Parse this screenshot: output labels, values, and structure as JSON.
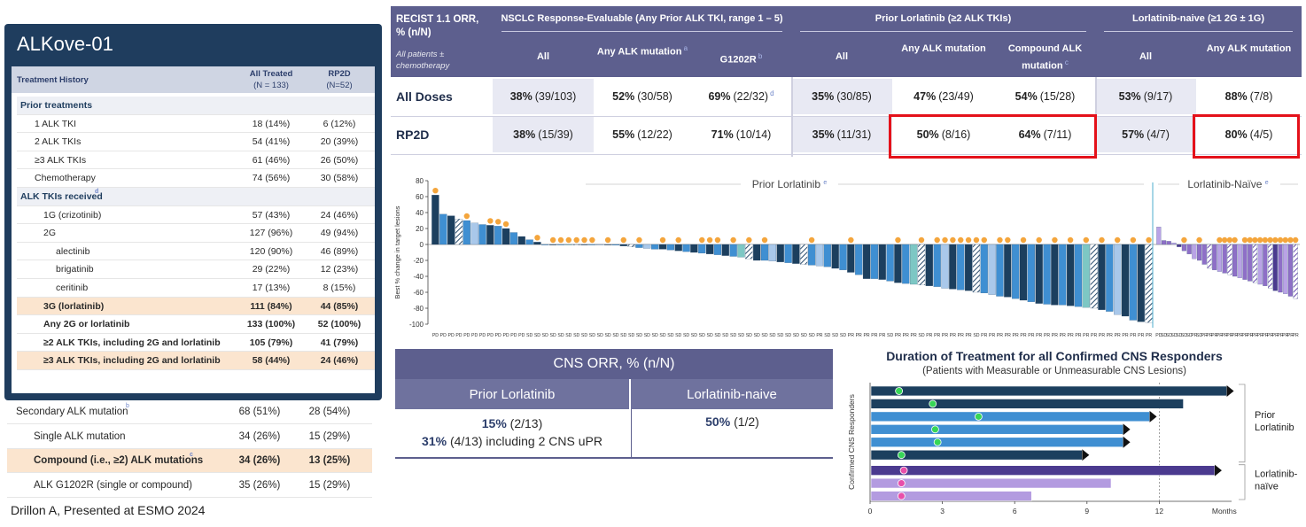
{
  "left_panel": {
    "title": "ALKove-01",
    "header": {
      "label": "Treatment History",
      "col1": "All Treated",
      "col1_n": "(N = 133)",
      "col2": "RP2D",
      "col2_n": "(N=52)"
    },
    "rows": [
      {
        "label": "Prior treatments",
        "v1": "",
        "v2": "",
        "kind": "sect",
        "indent": 0
      },
      {
        "label": "1 ALK TKI",
        "v1": "18 (14%)",
        "v2": "6 (12%)",
        "kind": "",
        "indent": 1
      },
      {
        "label": "2 ALK TKIs",
        "v1": "54 (41%)",
        "v2": "20 (39%)",
        "kind": "",
        "indent": 1
      },
      {
        "label": "≥3 ALK TKIs",
        "v1": "61 (46%)",
        "v2": "26 (50%)",
        "kind": "",
        "indent": 1
      },
      {
        "label": "Chemotherapy",
        "v1": "74 (56%)",
        "v2": "30 (58%)",
        "kind": "",
        "indent": 1
      },
      {
        "label": "ALK TKIs received",
        "sup": "d",
        "v1": "",
        "v2": "",
        "kind": "sect",
        "indent": 0
      },
      {
        "label": "1G (crizotinib)",
        "v1": "57 (43%)",
        "v2": "24 (46%)",
        "kind": "",
        "indent": 2
      },
      {
        "label": "2G",
        "v1": "127 (96%)",
        "v2": "49 (94%)",
        "kind": "",
        "indent": 2
      },
      {
        "label": "alectinib",
        "v1": "120 (90%)",
        "v2": "46 (89%)",
        "kind": "",
        "indent": 3
      },
      {
        "label": "brigatinib",
        "v1": "29 (22%)",
        "v2": "12 (23%)",
        "kind": "",
        "indent": 3
      },
      {
        "label": "ceritinib",
        "v1": "17 (13%)",
        "v2": "8 (15%)",
        "kind": "",
        "indent": 3
      },
      {
        "label": "3G (lorlatinib)",
        "v1": "111 (84%)",
        "v2": "44 (85%)",
        "kind": "hlb",
        "indent": 2
      },
      {
        "label": "Any 2G or lorlatinib",
        "v1": "133 (100%)",
        "v2": "52 (100%)",
        "kind": "b",
        "indent": 2
      },
      {
        "label": "≥2 ALK TKIs, including 2G and lorlatinib",
        "v1": "105 (79%)",
        "v2": "41 (79%)",
        "kind": "b",
        "indent": 2
      },
      {
        "label": "≥3 ALK TKIs, including 2G and lorlatinib",
        "v1": "58 (44%)",
        "v2": "24 (46%)",
        "kind": "hlb",
        "indent": 2
      }
    ],
    "below_rows": [
      {
        "label": "Secondary ALK mutation",
        "sup": "b",
        "v1": "68 (51%)",
        "v2": "28 (54%)",
        "kind": "sect",
        "indent": 0
      },
      {
        "label": "Single ALK mutation",
        "v1": "34 (26%)",
        "v2": "15 (29%)",
        "kind": "",
        "indent": 1
      },
      {
        "label": "Compound (i.e., ≥2) ALK mutations",
        "sup": "c",
        "v1": "34 (26%)",
        "v2": "13 (25%)",
        "kind": "hlb",
        "indent": 1
      },
      {
        "label": "ALK G1202R (single or compound)",
        "v1": "35 (26%)",
        "v2": "15 (29%)",
        "kind": "",
        "indent": 1
      }
    ]
  },
  "citation": "Drillon A, Presented at ESMO 2024",
  "orr_table": {
    "corner_title": "RECIST 1.1 ORR, % (n/N)",
    "corner_note": "All patients ± chemotherapy",
    "groups": [
      {
        "label": "NSCLC Response-Evaluable (Any Prior ALK TKI, range 1 – 5)"
      },
      {
        "label": "Prior Lorlatinib (≥2 ALK TKIs)"
      },
      {
        "label": "Lorlatinib-naive (≥1 2G ± 1G)"
      }
    ],
    "columns": [
      {
        "label": "All",
        "sup": ""
      },
      {
        "label": "Any ALK mutation",
        "sup": "a"
      },
      {
        "label": "G1202R",
        "sup": "b"
      },
      {
        "label": "All",
        "sup": ""
      },
      {
        "label": "Any ALK mutation",
        "sup": ""
      },
      {
        "label": "Compound ALK mutation",
        "sup": "c"
      },
      {
        "label": "All",
        "sup": ""
      },
      {
        "label": "Any ALK mutation",
        "sup": ""
      }
    ],
    "rows": [
      {
        "label": "All Doses",
        "cells": [
          [
            "38%",
            "(39/103)",
            ""
          ],
          [
            "52%",
            "(30/58)",
            ""
          ],
          [
            "69%",
            "(22/32)",
            "d"
          ],
          [
            "35%",
            "(30/85)",
            ""
          ],
          [
            "47%",
            "(23/49)",
            ""
          ],
          [
            "54%",
            "(15/28)",
            ""
          ],
          [
            "53%",
            "(9/17)",
            ""
          ],
          [
            "88%",
            "(7/8)",
            ""
          ]
        ]
      },
      {
        "label": "RP2D",
        "cells": [
          [
            "38%",
            "(15/39)",
            ""
          ],
          [
            "55%",
            "(12/22)",
            ""
          ],
          [
            "71%",
            "(10/14)",
            ""
          ],
          [
            "35%",
            "(11/31)",
            ""
          ],
          [
            "50%",
            "(8/16)",
            ""
          ],
          [
            "64%",
            "(7/11)",
            ""
          ],
          [
            "57%",
            "(4/7)",
            ""
          ],
          [
            "80%",
            "(4/5)",
            ""
          ]
        ]
      }
    ]
  },
  "chart_data": [
    {
      "type": "bar",
      "ylabel": "Best % change in target lesions",
      "ylim": [
        -100,
        80
      ],
      "yticks": [
        -100,
        -80,
        -60,
        -40,
        -20,
        0,
        20,
        40,
        60,
        80
      ],
      "group_labels": [
        {
          "label": "Prior Lorlatinib",
          "sup": "e"
        },
        {
          "label": "Lorlatinib-Naïve",
          "sup": "e"
        }
      ],
      "groups": [
        {
          "values": [
            62,
            38,
            36,
            32,
            30,
            27,
            25,
            24,
            23,
            20,
            15,
            10,
            6,
            3,
            0,
            0,
            0,
            0,
            0,
            0,
            0,
            0,
            0,
            -1,
            -2,
            -3,
            -4,
            -5,
            -6,
            -6,
            -7,
            -8,
            -9,
            -10,
            -11,
            -12,
            -13,
            -14,
            -15,
            -16,
            -18,
            -20,
            -20,
            -21,
            -22,
            -23,
            -24,
            -25,
            -26,
            -27,
            -28,
            -30,
            -32,
            -35,
            -38,
            -43,
            -43,
            -44,
            -46,
            -48,
            -49,
            -50,
            -51,
            -52,
            -53,
            -55,
            -56,
            -57,
            -58,
            -60,
            -61,
            -63,
            -65,
            -66,
            -68,
            -70,
            -72,
            -74,
            -75,
            -76,
            -76,
            -77,
            -78,
            -79,
            -80,
            -82,
            -84,
            -88,
            -90,
            -95,
            -97,
            -98
          ],
          "responses": [
            "PD",
            "PD",
            "PD",
            "PD",
            "PD",
            "PD",
            "PD",
            "PD",
            "PD",
            "PD",
            "PD",
            "PD",
            "SD",
            "SD",
            "SD",
            "SD",
            "SD",
            "SD",
            "SD",
            "SD",
            "SD",
            "SD",
            "SD",
            "SD",
            "SD",
            "SD",
            "SD",
            "SD",
            "SD",
            "SD",
            "SD",
            "SD",
            "SD",
            "SD",
            "SD",
            "SD",
            "SD",
            "SD",
            "SD",
            "SD",
            "SD",
            "SD",
            "SD",
            "SD",
            "SD",
            "SD",
            "SD",
            "SD",
            "SD",
            "PR",
            "SD",
            "SD",
            "SD",
            "PR",
            "PR",
            "PR",
            "PR",
            "PR",
            "SD",
            "PR",
            "PR",
            "PR",
            "SD",
            "PR",
            "PR",
            "PR",
            "PR",
            "PR",
            "PR",
            "SD",
            "PR",
            "PR",
            "PR",
            "PR",
            "PR",
            "PR",
            "PR",
            "PR",
            "PR",
            "PR",
            "PR",
            "PR",
            "PR",
            "PR",
            "PR",
            "PR",
            "PR",
            "PR",
            "PR",
            "PR",
            "PR",
            "PR"
          ]
        },
        {
          "values": [
            22,
            5,
            4,
            2,
            -3,
            -8,
            -12,
            -18,
            -20,
            -25,
            -30,
            -32,
            -34,
            -36,
            -38,
            -40,
            -42,
            -44,
            -46,
            -48,
            -50,
            -52,
            -55,
            -58,
            -60,
            -62,
            -65,
            -68
          ],
          "responses": [
            "PD",
            "SD",
            "SD",
            "SD",
            "SD",
            "SD",
            "SD",
            "PR",
            "SD",
            "PR",
            "PR",
            "PR",
            "PR",
            "PR",
            "PR",
            "PR",
            "PR",
            "PR",
            "PR",
            "PR",
            "PR",
            "PR",
            "PR",
            "PR",
            "PR",
            "PR",
            "PR",
            "PR"
          ]
        }
      ]
    },
    {
      "type": "bar",
      "title": "Duration of Treatment for all Confirmed CNS Responders",
      "subtitle": "(Patients with Measurable or Unmeasurable CNS Lesions)",
      "xlabel": "Months",
      "ylabel": "Confirmed CNS Responders",
      "xlim": [
        0,
        15
      ],
      "xticks": [
        0,
        3,
        6,
        9,
        12
      ],
      "group_labels": [
        "Prior Lorlatinib",
        "Lorlatinib-naïve"
      ],
      "series": [
        {
          "group": 0,
          "duration": 14.8,
          "response_month": 1.2,
          "ongoing": true
        },
        {
          "group": 0,
          "duration": 13.0,
          "response_month": 2.6,
          "ongoing": false
        },
        {
          "group": 0,
          "duration": 11.6,
          "response_month": 4.5,
          "ongoing": true
        },
        {
          "group": 0,
          "duration": 10.5,
          "response_month": 2.7,
          "ongoing": true
        },
        {
          "group": 0,
          "duration": 10.5,
          "response_month": 2.8,
          "ongoing": true
        },
        {
          "group": 0,
          "duration": 8.8,
          "response_month": 1.3,
          "ongoing": true
        },
        {
          "group": 1,
          "duration": 14.3,
          "response_month": 1.4,
          "ongoing": true
        },
        {
          "group": 1,
          "duration": 10.0,
          "response_month": 1.3,
          "ongoing": false
        },
        {
          "group": 1,
          "duration": 6.7,
          "response_month": 1.3,
          "ongoing": false
        }
      ]
    }
  ],
  "cns_table": {
    "title": "CNS ORR, % (n/N)",
    "col1": "Prior Lorlatinib",
    "col2": "Lorlatinib-naive",
    "v1_pct": "15%",
    "v1_frac": "(2/13)",
    "v1b_pct": "31%",
    "v1b_frac": "(4/13) including 2 CNS uPR",
    "v2_pct": "50%",
    "v2_frac": "(1/2)"
  },
  "colors": {
    "navy": "#1c3f5e",
    "header": "#5d5f8e",
    "bar_blue": "#3f8fd2",
    "bar_teal": "#7dc7c4",
    "bar_light": "#a9c8ea",
    "purple": "#8e6fc7",
    "purple_dark": "#4b3a8f",
    "dot_orange": "#f4a53c",
    "highlight": "#fbe5cf",
    "red": "#e4111a",
    "green_dot": "#37d657",
    "pink_dot": "#e84faa"
  }
}
